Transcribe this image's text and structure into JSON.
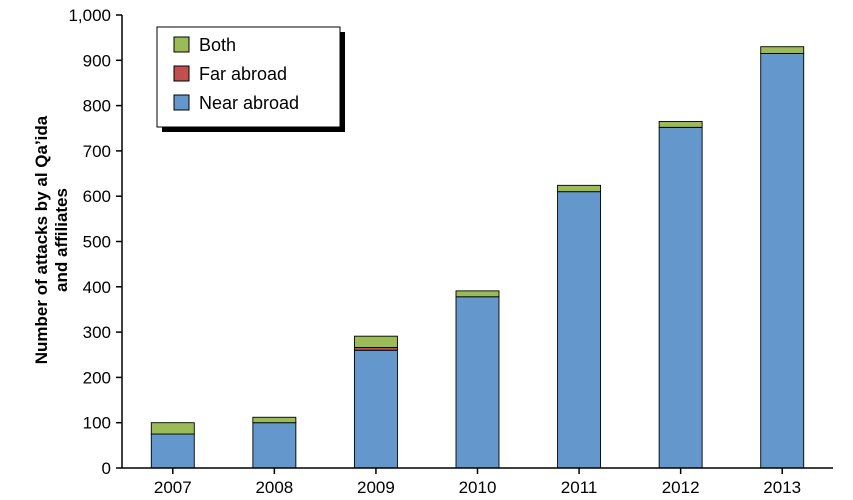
{
  "chart_data": {
    "type": "bar",
    "stacked": true,
    "categories": [
      "2007",
      "2008",
      "2009",
      "2010",
      "2011",
      "2012",
      "2013"
    ],
    "series": [
      {
        "name": "Near abroad",
        "color": "#6497cc",
        "values": [
          75,
          100,
          260,
          378,
          610,
          752,
          915
        ]
      },
      {
        "name": "Far abroad",
        "color": "#c0504d",
        "values": [
          0,
          0,
          6,
          0,
          0,
          0,
          0
        ]
      },
      {
        "name": "Both",
        "color": "#9bbb59",
        "values": [
          25,
          12,
          25,
          13,
          14,
          13,
          15
        ]
      }
    ],
    "ylabel_lines": [
      "Number of attacks by al Qa’ida",
      "and affiliates"
    ],
    "ylim": [
      0,
      1000
    ],
    "yticks": [
      0,
      100,
      200,
      300,
      400,
      500,
      600,
      700,
      800,
      900,
      1000
    ],
    "ytick_labels": [
      "0",
      "100",
      "200",
      "300",
      "400",
      "500",
      "600",
      "700",
      "800",
      "900",
      "1,000"
    ],
    "legend": {
      "position": "top-left",
      "order": [
        "Both",
        "Far abroad",
        "Near abroad"
      ]
    },
    "grid": false
  }
}
